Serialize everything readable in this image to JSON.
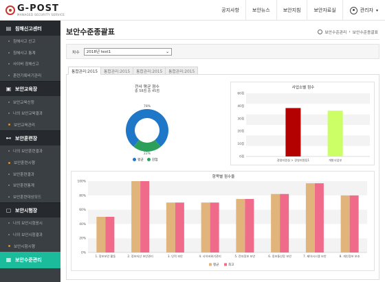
{
  "header": {
    "logo_title": "G-POST",
    "logo_subtitle": "MANAGED SECURITY SERVICE",
    "nav": [
      "공지사항",
      "보안뉴스",
      "보안지침",
      "보안자료실"
    ],
    "user_label": "관리자"
  },
  "sidebar": {
    "sections": [
      {
        "title": "침해신고센터",
        "icon": "alert-icon",
        "items": [
          "침해사고 신고",
          "침해사고 통계",
          "사이버 침해신고",
          "훈련기록비기관리"
        ]
      },
      {
        "title": "보안교육장",
        "icon": "education-icon",
        "items": [
          "보안교육신청",
          "나의 보안교육결과",
          "보안교육관리"
        ]
      },
      {
        "title": "보안훈련장",
        "icon": "training-icon",
        "items": [
          "나의 보안훈련결과",
          "보안훈련시행",
          "보안훈련결과",
          "보안훈련통계",
          "보안훈련대상모드"
        ]
      },
      {
        "title": "보안시험장",
        "icon": "exam-icon",
        "items": [
          "나의 보안시험응시",
          "나의 보안시험결과",
          "보안시험시행"
        ]
      }
    ],
    "active": {
      "title": "보안수준관리",
      "icon": "chart-icon"
    }
  },
  "page": {
    "title": "보안수준종괄표",
    "breadcrumb": [
      "보안수준관리",
      "보안수준종괄표"
    ]
  },
  "filter": {
    "label": "차수",
    "selected": "2018년 test1"
  },
  "tabs": [
    "통합관리:2015",
    "통합관리:2015",
    "통합관리:2015",
    "통합관리:2015"
  ],
  "donut": {
    "title": "전사 평균 점수",
    "subtitle": "총 58점 중 45점",
    "top_label": "78%",
    "bottom_label": "22%",
    "legend": [
      "평균",
      "감점"
    ],
    "colors": [
      "#1f77c8",
      "#2ca05a"
    ]
  },
  "chart_data": [
    {
      "type": "bar",
      "title": "사업소별 점수",
      "categories": [
        "경영지원실 > 경영지원팀1",
        "개발사업부"
      ],
      "values": [
        46,
        43.5
      ],
      "colors": [
        "#b30000",
        "#ccff66"
      ],
      "ylim": [
        0,
        60
      ],
      "yticks": [
        "0점",
        "10점",
        "20점",
        "30점",
        "40점",
        "60점"
      ],
      "ylabel": "",
      "xlabel": ""
    },
    {
      "type": "bar",
      "title": "항목별 점수율",
      "categories": [
        "1. 정보보안 활동",
        "2. 정보자산 보안관리",
        "3. 인적 보안",
        "4. 사이버위기관리",
        "5. 전자정보 보안",
        "6. 정보통신망 보안",
        "7. 제어시스템 보안",
        "8. 개인정보 보호"
      ],
      "series": [
        {
          "name": "평균",
          "values": [
            50,
            100,
            70,
            70,
            75,
            82,
            97,
            80
          ],
          "color": "#e0b47a"
        },
        {
          "name": "최고",
          "values": [
            50,
            100,
            70,
            70,
            75,
            82,
            97,
            80
          ],
          "color": "#f06a8a"
        }
      ],
      "ylim": [
        0,
        100
      ],
      "yticks": [
        "0%",
        "20%",
        "40%",
        "60%",
        "80%",
        "100%"
      ],
      "ylabel": "",
      "xlabel": ""
    }
  ]
}
